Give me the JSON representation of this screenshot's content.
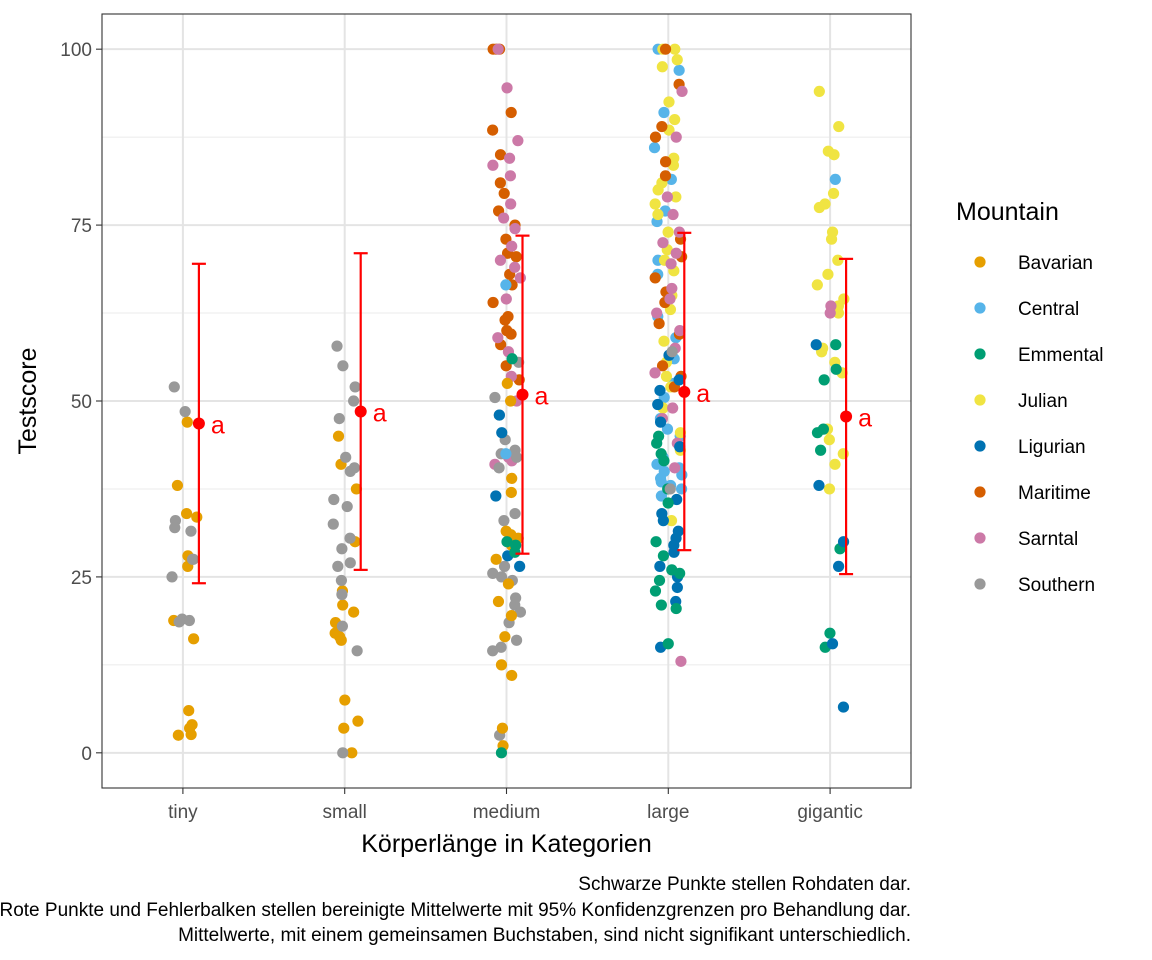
{
  "chart_data": {
    "type": "scatter",
    "xlabel": "Körperlänge in Kategorien",
    "ylabel": "Testscore",
    "categories": [
      "tiny",
      "small",
      "medium",
      "large",
      "gigantic"
    ],
    "y_ticks": [
      0,
      25,
      50,
      75,
      100
    ],
    "ylim": [
      -5,
      105
    ],
    "grid": true,
    "legend": {
      "title": "Mountain",
      "position": "right",
      "entries": [
        "Bavarian",
        "Central",
        "Emmental",
        "Julian",
        "Ligurian",
        "Maritime",
        "Sarntal",
        "Southern"
      ]
    },
    "colors": {
      "Bavarian": "#E69F00",
      "Central": "#56B4E9",
      "Emmental": "#009E73",
      "Julian": "#F0E442",
      "Ligurian": "#0072B2",
      "Maritime": "#D55E00",
      "Sarntal": "#CC79A7",
      "Southern": "#999999",
      "summary": "#FF0000"
    },
    "summary": [
      {
        "category": "tiny",
        "mean": 46.8,
        "lower": 24.1,
        "upper": 69.5,
        "letter": "a"
      },
      {
        "category": "small",
        "mean": 48.5,
        "lower": 26.0,
        "upper": 71.0,
        "letter": "a"
      },
      {
        "category": "medium",
        "mean": 50.9,
        "lower": 28.3,
        "upper": 73.5,
        "letter": "a"
      },
      {
        "category": "large",
        "mean": 51.3,
        "lower": 28.8,
        "upper": 73.9,
        "letter": "a"
      },
      {
        "category": "gigantic",
        "mean": 47.8,
        "lower": 25.4,
        "upper": 70.2,
        "letter": "a"
      }
    ],
    "points": {
      "tiny": {
        "Bavarian": [
          47,
          38,
          34,
          33.5,
          28,
          26.5,
          18.8,
          16.2,
          6,
          4,
          3.5,
          2.5,
          2.6
        ],
        "Southern": [
          52,
          48.5,
          33,
          32,
          31.5,
          27.5,
          27.5,
          25,
          19,
          18.8,
          18.6
        ]
      },
      "small": {
        "Bavarian": [
          45,
          41,
          37.5,
          30,
          23,
          21,
          20,
          18.5,
          17,
          16.5,
          16,
          7.5,
          4.5,
          3.5,
          0
        ],
        "Southern": [
          57.8,
          55,
          52,
          50,
          47.5,
          42,
          40.5,
          40,
          36,
          35,
          32.5,
          30.5,
          29,
          27,
          26.5,
          24.5,
          22.5,
          18,
          14.5,
          0
        ]
      },
      "medium": {
        "Maritime": [
          100,
          100,
          100,
          91,
          88.5,
          85,
          81,
          79.5,
          77,
          75,
          73,
          71,
          70.5,
          68,
          66.5,
          64,
          62,
          61.5,
          60,
          59.5,
          58,
          55,
          53
        ],
        "Sarntal": [
          100,
          94.5,
          87,
          84.5,
          83.5,
          82,
          78,
          76,
          74.5,
          72,
          70,
          69,
          67.5,
          64.5,
          59,
          57,
          53.5,
          50,
          42,
          41.5,
          41
        ],
        "Southern": [
          55.5,
          50.5,
          48,
          44.5,
          43,
          42.5,
          42,
          40.5,
          34,
          33,
          26.5,
          25.5,
          25,
          24.5,
          22,
          21,
          20,
          18.5,
          16,
          15,
          14.5,
          2.5
        ],
        "Bavarian": [
          52.5,
          50,
          39,
          37,
          31.5,
          31,
          30.5,
          29.5,
          27.5,
          24,
          21.5,
          19.5,
          16.5,
          12.5,
          11,
          3.5,
          1
        ],
        "Ligurian": [
          48,
          45.5,
          36.5,
          28,
          26.5
        ],
        "Emmental": [
          56,
          30,
          29.5,
          28.5,
          0
        ],
        "Central": [
          66.5,
          42.5
        ]
      },
      "large": {
        "Central": [
          100,
          97,
          91,
          86,
          81.5,
          77,
          75.5,
          70,
          68,
          62,
          59,
          56,
          52.5,
          50.5,
          47.5,
          46,
          45,
          42,
          41,
          40.5,
          40,
          39.5,
          39,
          38.5,
          38,
          37.5,
          36.5
        ],
        "Julian": [
          100,
          100,
          98.5,
          97.5,
          92.5,
          90,
          88.5,
          84.5,
          83.5,
          81,
          80,
          79,
          78,
          76.5,
          74,
          71.5,
          70,
          68.5,
          65,
          63,
          58.5,
          55.5,
          53.5,
          52,
          49,
          45.5,
          43,
          33
        ],
        "Maritime": [
          100,
          95,
          89,
          87.5,
          84,
          82,
          73,
          70.5,
          67.5,
          65.5,
          64,
          61,
          59.5,
          55,
          53.5,
          52
        ],
        "Sarntal": [
          94,
          87.5,
          79,
          76.5,
          74,
          72.5,
          71,
          69.5,
          66,
          64.5,
          62.5,
          60,
          57.5,
          54,
          49,
          47.5,
          44,
          40.5,
          13
        ],
        "Ligurian": [
          56.5,
          53,
          51.5,
          49.5,
          47,
          43.5,
          36,
          34,
          33,
          31.5,
          30.5,
          29.5,
          28.5,
          26.5,
          25,
          23.5,
          21.5,
          15
        ],
        "Emmental": [
          45,
          44,
          42.5,
          41.5,
          37.5,
          35.5,
          30,
          28,
          26,
          25.5,
          24.5,
          23,
          21,
          20.5,
          15.5
        ],
        "Southern": [
          57,
          37.5
        ]
      },
      "gigantic": {
        "Julian": [
          94,
          89,
          85.5,
          85,
          79.5,
          78,
          77.5,
          74,
          73,
          70,
          68,
          66.5,
          64.5,
          63.5,
          62.5,
          57.5,
          57,
          55.5,
          54,
          46,
          44.5,
          42.5,
          41,
          37.5
        ],
        "Central": [
          81.5
        ],
        "Sarntal": [
          63.5,
          62.5
        ],
        "Emmental": [
          58,
          54.5,
          53,
          46,
          45.5,
          43,
          29,
          17,
          15
        ],
        "Ligurian": [
          58,
          38,
          30,
          26.5,
          15.5,
          6.5
        ]
      }
    }
  },
  "caption": {
    "line1": "Schwarze Punkte stellen Rohdaten dar.",
    "line2": "Rote Punkte und Fehlerbalken stellen bereinigte Mittelwerte mit 95% Konfidenzgrenzen pro Behandlung dar.",
    "line3": "Mittelwerte, mit einem gemeinsamen Buchstaben, sind nicht signifikant unterschiedlich."
  }
}
